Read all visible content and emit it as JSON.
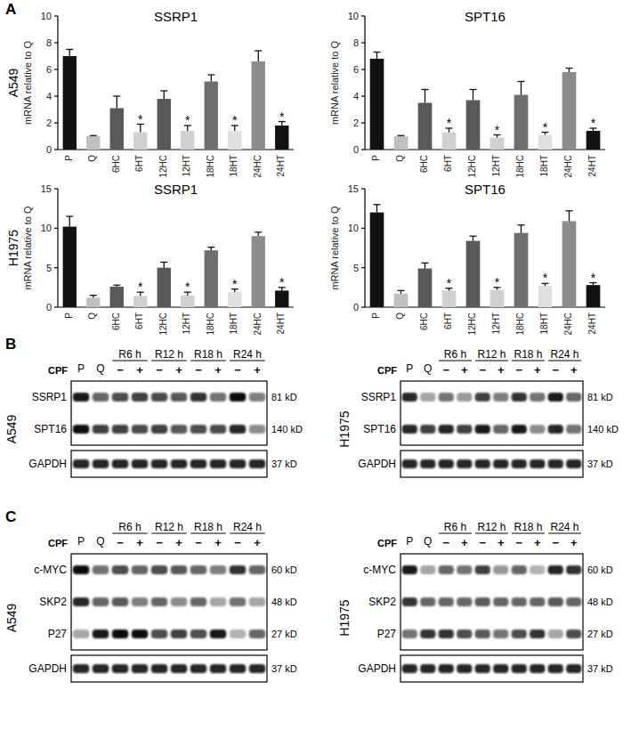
{
  "chart_data": [
    {
      "type": "bar",
      "title": "SSRP1",
      "y_label": "mRNA relative to Q",
      "categories": [
        "P",
        "Q",
        "6HC",
        "6HT",
        "12HC",
        "12HT",
        "18HC",
        "18HT",
        "24HC",
        "24HT"
      ],
      "values": [
        7.0,
        1.0,
        3.1,
        1.3,
        3.8,
        1.4,
        5.1,
        1.4,
        6.6,
        1.8
      ],
      "errors": [
        0.5,
        0.05,
        0.9,
        0.6,
        0.6,
        0.4,
        0.5,
        0.4,
        0.8,
        0.3
      ],
      "colors": [
        "#111111",
        "#bfbfbf",
        "#595959",
        "#d0d0d0",
        "#595959",
        "#d0d0d0",
        "#6e6e6e",
        "#e0e0e0",
        "#8c8c8c",
        "#111111"
      ],
      "annotations": [
        null,
        null,
        null,
        "*",
        null,
        "*",
        null,
        "*",
        null,
        "*"
      ],
      "ylim": [
        0,
        10
      ],
      "yticks": [
        0,
        2,
        4,
        6,
        8,
        10
      ],
      "grid": false
    },
    {
      "type": "bar",
      "title": "SPT16",
      "y_label": "mRNA relative to Q",
      "categories": [
        "P",
        "Q",
        "6HC",
        "6HT",
        "12HC",
        "12HT",
        "18HC",
        "18HT",
        "24HC",
        "24HT"
      ],
      "values": [
        6.8,
        1.0,
        3.5,
        1.3,
        3.7,
        0.9,
        4.1,
        1.1,
        5.8,
        1.4
      ],
      "errors": [
        0.5,
        0.05,
        1.0,
        0.3,
        0.8,
        0.2,
        1.0,
        0.2,
        0.3,
        0.2
      ],
      "colors": [
        "#111111",
        "#bfbfbf",
        "#595959",
        "#d0d0d0",
        "#595959",
        "#d0d0d0",
        "#6e6e6e",
        "#e0e0e0",
        "#8c8c8c",
        "#111111"
      ],
      "annotations": [
        null,
        null,
        null,
        "*",
        null,
        "*",
        null,
        "*",
        null,
        "*"
      ],
      "ylim": [
        0,
        10
      ],
      "yticks": [
        0,
        2,
        4,
        6,
        8,
        10
      ],
      "grid": false
    },
    {
      "type": "bar",
      "title": "SSRP1",
      "y_label": "mRNA relative to Q",
      "categories": [
        "P",
        "Q",
        "6HC",
        "6HT",
        "12HC",
        "12HT",
        "18HC",
        "18HT",
        "24HC",
        "24HT"
      ],
      "values": [
        10.2,
        1.2,
        2.6,
        1.4,
        5.0,
        1.5,
        7.2,
        1.9,
        9.0,
        2.1
      ],
      "errors": [
        1.3,
        0.3,
        0.2,
        0.5,
        0.7,
        0.4,
        0.4,
        0.4,
        0.5,
        0.4
      ],
      "colors": [
        "#111111",
        "#bfbfbf",
        "#595959",
        "#d0d0d0",
        "#595959",
        "#d0d0d0",
        "#6e6e6e",
        "#e0e0e0",
        "#8c8c8c",
        "#111111"
      ],
      "annotations": [
        null,
        null,
        null,
        "*",
        null,
        "*",
        null,
        "*",
        null,
        "*"
      ],
      "ylim": [
        0,
        15
      ],
      "yticks": [
        0,
        5,
        10,
        15
      ],
      "grid": false
    },
    {
      "type": "bar",
      "title": "SPT16",
      "y_label": "mRNA relative to Q",
      "categories": [
        "P",
        "Q",
        "6HC",
        "6HT",
        "12HC",
        "12HT",
        "18HC",
        "18HT",
        "24HC",
        "24HT"
      ],
      "values": [
        12.0,
        1.7,
        4.9,
        2.1,
        8.4,
        2.2,
        9.4,
        2.7,
        10.9,
        2.8
      ],
      "errors": [
        1.0,
        0.4,
        0.7,
        0.3,
        0.6,
        0.3,
        1.0,
        0.3,
        1.3,
        0.3
      ],
      "colors": [
        "#111111",
        "#bfbfbf",
        "#595959",
        "#d0d0d0",
        "#595959",
        "#d0d0d0",
        "#6e6e6e",
        "#e0e0e0",
        "#8c8c8c",
        "#111111"
      ],
      "annotations": [
        null,
        null,
        null,
        "*",
        null,
        "*",
        null,
        "*",
        null,
        "*"
      ],
      "ylim": [
        0,
        15
      ],
      "yticks": [
        0,
        5,
        10,
        15
      ],
      "grid": false
    }
  ],
  "panel_labels": [
    "A",
    "B",
    "C"
  ],
  "panel_a_rows": [
    "A549",
    "H1975"
  ],
  "blots": [
    {
      "panel": "B",
      "cell_line": "A549",
      "treatment_label": "CPF",
      "singles": [
        "P",
        "Q"
      ],
      "groups": [
        "R6 h",
        "R12 h",
        "R18 h",
        "R24 h"
      ],
      "signs": [
        "−",
        "+"
      ],
      "rows": [
        {
          "protein": "SSRP1",
          "kd": "81 kD",
          "bands": [
            0.9,
            0.6,
            0.7,
            0.75,
            0.7,
            0.65,
            0.8,
            0.55,
            0.95,
            0.5
          ]
        },
        {
          "protein": "SPT16",
          "kd": "140 kD",
          "bands": [
            0.95,
            0.75,
            0.75,
            0.7,
            0.75,
            0.65,
            0.7,
            0.7,
            0.85,
            0.45
          ]
        },
        {
          "protein": "GAPDH",
          "kd": "37 kD",
          "bands": [
            0.85,
            0.85,
            0.85,
            0.85,
            0.85,
            0.85,
            0.85,
            0.85,
            0.85,
            0.85
          ]
        }
      ]
    },
    {
      "panel": "B",
      "cell_line": "H1975",
      "treatment_label": "CPF",
      "singles": [
        "P",
        "Q"
      ],
      "groups": [
        "R6 h",
        "R12 h",
        "R18 h",
        "R24 h"
      ],
      "signs": [
        "−",
        "+"
      ],
      "rows": [
        {
          "protein": "SSRP1",
          "kd": "81 kD",
          "bands": [
            0.85,
            0.35,
            0.55,
            0.4,
            0.75,
            0.5,
            0.8,
            0.55,
            0.9,
            0.6
          ]
        },
        {
          "protein": "SPT16",
          "kd": "140 kD",
          "bands": [
            0.85,
            0.75,
            0.85,
            0.75,
            0.9,
            0.6,
            0.9,
            0.45,
            0.85,
            0.55
          ]
        },
        {
          "protein": "GAPDH",
          "kd": "37 kD",
          "bands": [
            0.85,
            0.85,
            0.85,
            0.85,
            0.85,
            0.85,
            0.85,
            0.85,
            0.85,
            0.85
          ]
        }
      ]
    },
    {
      "panel": "C",
      "cell_line": "A549",
      "treatment_label": "CPF",
      "singles": [
        "P",
        "Q"
      ],
      "groups": [
        "R6 h",
        "R12 h",
        "R18 h",
        "R24 h"
      ],
      "signs": [
        "−",
        "+"
      ],
      "rows": [
        {
          "protein": "c-MYC",
          "kd": "60 kD",
          "bands": [
            0.95,
            0.55,
            0.7,
            0.6,
            0.7,
            0.65,
            0.6,
            0.5,
            0.8,
            0.6
          ]
        },
        {
          "protein": "SKP2",
          "kd": "48 kD",
          "bands": [
            0.85,
            0.6,
            0.65,
            0.5,
            0.6,
            0.45,
            0.6,
            0.35,
            0.55,
            0.35
          ]
        },
        {
          "protein": "P27",
          "kd": "27 kD",
          "bands": [
            0.35,
            0.9,
            0.95,
            0.95,
            0.7,
            0.75,
            0.7,
            0.9,
            0.3,
            0.6
          ]
        },
        {
          "protein": "GAPDH",
          "kd": "37 kD",
          "bands": [
            0.85,
            0.85,
            0.85,
            0.85,
            0.85,
            0.85,
            0.85,
            0.85,
            0.85,
            0.85
          ]
        }
      ]
    },
    {
      "panel": "C",
      "cell_line": "H1975",
      "treatment_label": "CPF",
      "singles": [
        "P",
        "Q"
      ],
      "groups": [
        "R6 h",
        "R12 h",
        "R18 h",
        "R24 h"
      ],
      "signs": [
        "−",
        "+"
      ],
      "rows": [
        {
          "protein": "c-MYC",
          "kd": "60 kD",
          "bands": [
            0.9,
            0.35,
            0.6,
            0.55,
            0.75,
            0.4,
            0.6,
            0.3,
            0.85,
            0.8
          ]
        },
        {
          "protein": "SKP2",
          "kd": "48 kD",
          "bands": [
            0.8,
            0.6,
            0.6,
            0.6,
            0.65,
            0.6,
            0.6,
            0.6,
            0.65,
            0.6
          ]
        },
        {
          "protein": "P27",
          "kd": "27 kD",
          "bands": [
            0.55,
            0.8,
            0.8,
            0.7,
            0.65,
            0.55,
            0.7,
            0.8,
            0.35,
            0.7
          ]
        },
        {
          "protein": "GAPDH",
          "kd": "37 kD",
          "bands": [
            0.85,
            0.85,
            0.85,
            0.85,
            0.85,
            0.85,
            0.85,
            0.85,
            0.85,
            0.85
          ]
        }
      ]
    }
  ]
}
